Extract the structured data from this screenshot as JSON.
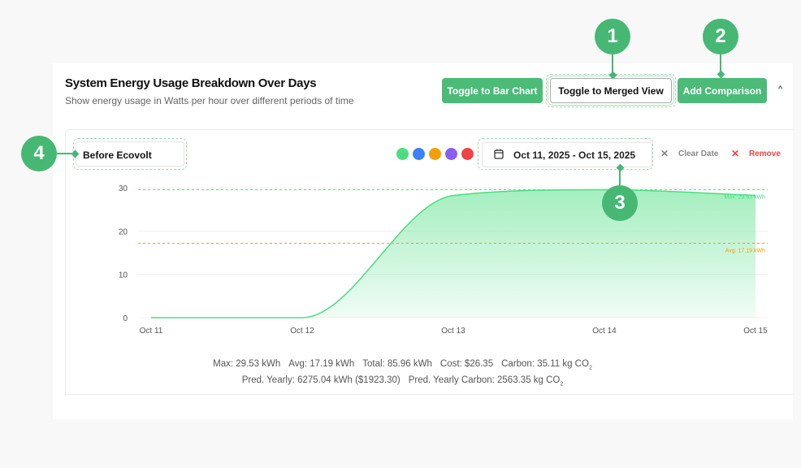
{
  "header": {
    "title": "System Energy Usage Breakdown Over Days",
    "subtitle": "Show energy usage in Watts per hour over different periods of time"
  },
  "toolbar": {
    "bar_chart": "Toggle to Bar Chart",
    "merged_view": "Toggle to Merged View",
    "add_comparison": "Add Comparison",
    "collapse": "^"
  },
  "series_panel": {
    "label": "Before Ecovolt",
    "colors": [
      "#4ade80",
      "#3b82f6",
      "#f59e0b",
      "#8b5cf6",
      "#ef4444"
    ],
    "date_range": "Oct 11, 2025 - Oct 15, 2025",
    "clear_date": "Clear Date",
    "remove": "Remove",
    "x_icon": "✕"
  },
  "chart_data": {
    "type": "area",
    "x": [
      "Oct 11",
      "Oct 12",
      "Oct 13",
      "Oct 14",
      "Oct 15"
    ],
    "values": [
      0,
      0,
      28.2,
      29.53,
      28.23
    ],
    "yticks": [
      0,
      10,
      20,
      30
    ],
    "ylim": [
      0,
      30
    ],
    "color": "#4ade80",
    "grid": true,
    "reference_lines": [
      {
        "label": "Max: 29.53 kWh",
        "value": 29.53,
        "color": "#4ade80"
      },
      {
        "label": "Avg: 17.19 kWh",
        "value": 17.19,
        "color": "#f59e0b"
      }
    ]
  },
  "stats": {
    "max": "Max: 29.53 kWh",
    "avg": "Avg: 17.19 kWh",
    "total": "Total: 85.96 kWh",
    "cost": "Cost: $26.35",
    "carbon": "Carbon: 35.11 kg CO",
    "carbon_sub": "2",
    "pred_yearly": "Pred. Yearly: 6275.04 kWh ($1923.30)",
    "pred_carbon": "Pred. Yearly Carbon: 2563.35 kg CO",
    "pred_carbon_sub": "2"
  },
  "annotations": [
    "1",
    "2",
    "3",
    "4"
  ]
}
